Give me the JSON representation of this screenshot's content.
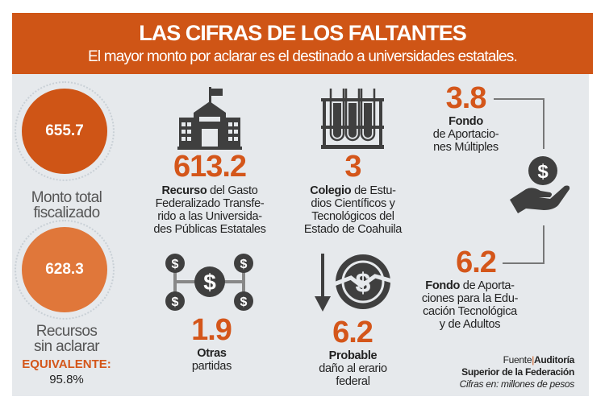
{
  "header": {
    "title": "LAS CIFRAS DE LOS FALTANTES",
    "subtitle": "El mayor monto por aclarar es el destinado a universidades estatales."
  },
  "summary": {
    "total": {
      "value": "655.7",
      "label_1": "Monto total",
      "label_2": "fiscalizado"
    },
    "unclarified": {
      "value": "628.3",
      "label_1": "Recursos",
      "label_2": "sin aclarar"
    },
    "equivalent_label": "EQUIVALENTE:",
    "equivalent_value": "95.8%"
  },
  "items": [
    {
      "icon": "university-building-icon",
      "value": "613.2",
      "bold": "Recurso",
      "lines": [
        " del Gasto",
        "Federalizado Transfe-",
        "rido a las Universida-",
        "des Públicas Estatales"
      ]
    },
    {
      "icon": "test-tubes-icon",
      "value": "3",
      "bold": "Colegio",
      "lines": [
        " de Estu-",
        "dios Científicos y",
        "Tecnológicos del",
        "Estado de Coahuila"
      ]
    },
    {
      "icon": "money-network-icon",
      "value": "1.9",
      "bold": "Otras",
      "lines": [
        "partidas"
      ]
    },
    {
      "icon": "falling-coin-icon",
      "value": "6.2",
      "bold": "Probable",
      "lines": [
        "daño al erario",
        "federal"
      ]
    },
    {
      "icon": "hand-coin-icon",
      "value": "3.8",
      "bold": "Fondo",
      "lines": [
        "de Aportacio-",
        "nes Múltiples"
      ]
    },
    {
      "icon": "hand-coin-icon",
      "value": "6.2",
      "bold": "Fondo",
      "lines": [
        " de Aporta-",
        "ciones para la Edu-",
        "cación Tecnológica",
        "y de Adultos"
      ]
    }
  ],
  "source": {
    "prefix": "Fuente",
    "org_1": "Auditoría",
    "org_2": "Superior de la Federación",
    "note": "Cifras en: millones de pesos"
  },
  "colors": {
    "accent": "#cf5516",
    "accent_light": "#e0773a",
    "panel": "#e6e9ec",
    "icon": "#3f3f3f"
  }
}
